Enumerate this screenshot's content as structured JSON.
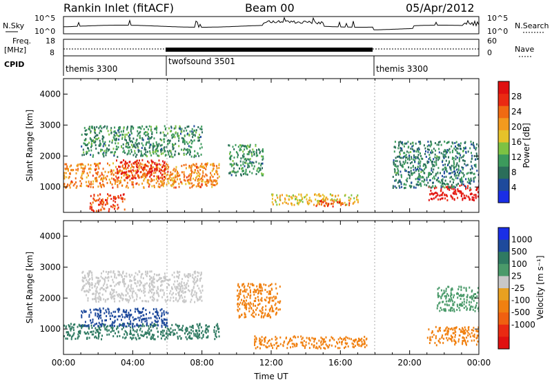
{
  "header": {
    "station": "Rankin Inlet (fitACF)",
    "beam": "Beam 00",
    "date": "05/Apr/2012"
  },
  "panel_labels": {
    "nsky": "N.Sky",
    "freq": "Freq.",
    "mhz": "[MHz]",
    "cpid": "CPID",
    "nsearch": "N.Search",
    "nave": "Nave"
  },
  "colors": {
    "power_scale": [
      "#1a2ee6",
      "#1e4a9c",
      "#2b6e5a",
      "#3c9a5c",
      "#7dc243",
      "#e6c22a",
      "#f29a1e",
      "#f06a12",
      "#ea2a12",
      "#e01010"
    ],
    "velocity_scale": [
      "#1a2ee6",
      "#1e4a9c",
      "#2f7a62",
      "#4a9a6a",
      "#c8c8c8",
      "#e8a020",
      "#f08010",
      "#f06010",
      "#ea2a12",
      "#e01010"
    ]
  },
  "chart_data": [
    {
      "type": "line",
      "panel": "noise",
      "ylabel_left": "N.Sky",
      "ylabel_right": "N.Search",
      "left_ticks": [
        "10^5",
        "10^0"
      ],
      "right_ticks": [
        "10^5",
        "10^0"
      ]
    },
    {
      "type": "line",
      "panel": "frequency",
      "ylabel_left": "Freq. [MHz]",
      "ylabel_right": "Nave",
      "left_ticks": [
        "18",
        "8"
      ],
      "right_ticks": [
        "60",
        "0"
      ]
    },
    {
      "type": "table",
      "panel": "cpid",
      "label": "CPID",
      "segments": [
        {
          "name": "themis 3300",
          "start": "00:00",
          "end": "06:00"
        },
        {
          "name": "twofsound 3501",
          "start": "06:00",
          "end": "18:00"
        },
        {
          "name": "themis 3300",
          "start": "18:00",
          "end": "24:00"
        }
      ]
    },
    {
      "type": "heatmap",
      "panel": "power",
      "ylabel": "Slant Range [km]",
      "xlabel": "Time UT",
      "y_ticks": [
        "1000",
        "2000",
        "3000",
        "4000"
      ],
      "ylim": [
        180,
        4500
      ],
      "x_ticks": [
        "00:00",
        "04:00",
        "08:00",
        "12:00",
        "16:00",
        "20:00",
        "00:00"
      ],
      "colorbar_label": "Power [dB]",
      "colorbar_ticks": [
        "4",
        "8",
        "12",
        "16",
        "20",
        "24",
        "28"
      ],
      "colorbar_range": [
        0,
        32
      ],
      "regions": [
        {
          "t0": 0.0,
          "t1": 9.0,
          "r0": 1000,
          "r1": 1800,
          "value": 22
        },
        {
          "t0": 1.0,
          "t1": 8.0,
          "r0": 2000,
          "r1": 3000,
          "value": 10
        },
        {
          "t0": 3.0,
          "t1": 6.0,
          "r0": 1300,
          "r1": 1900,
          "value": 28
        },
        {
          "t0": 1.5,
          "t1": 3.5,
          "r0": 250,
          "r1": 800,
          "value": 26
        },
        {
          "t0": 9.5,
          "t1": 11.5,
          "r0": 1400,
          "r1": 2400,
          "value": 10
        },
        {
          "t0": 12.0,
          "t1": 17.0,
          "r0": 450,
          "r1": 800,
          "value": 18
        },
        {
          "t0": 14.5,
          "t1": 16.5,
          "r0": 400,
          "r1": 600,
          "value": 26
        },
        {
          "t0": 21.0,
          "t1": 24.0,
          "r0": 600,
          "r1": 1100,
          "value": 30
        },
        {
          "t0": 19.0,
          "t1": 24.0,
          "r0": 1000,
          "r1": 2500,
          "value": 9
        }
      ]
    },
    {
      "type": "heatmap",
      "panel": "velocity",
      "ylabel": "Slant Range [km]",
      "xlabel": "Time UT",
      "y_ticks": [
        "1000",
        "2000",
        "3000",
        "4000"
      ],
      "ylim": [
        180,
        4500
      ],
      "x_ticks": [
        "00:00",
        "04:00",
        "08:00",
        "12:00",
        "16:00",
        "20:00",
        "00:00"
      ],
      "colorbar_label": "Velocity [m s⁻¹]",
      "colorbar_ticks": [
        "1000",
        "500",
        "100",
        "25",
        "-25",
        "-100",
        "-500",
        "-1000"
      ],
      "regions": [
        {
          "t0": 0.0,
          "t1": 9.0,
          "r0": 700,
          "r1": 1200,
          "value": 150
        },
        {
          "t0": 1.0,
          "t1": 6.0,
          "r0": 1100,
          "r1": 1700,
          "value": 600
        },
        {
          "t0": 1.0,
          "t1": 8.0,
          "r0": 1900,
          "r1": 2900,
          "value": 0
        },
        {
          "t0": 10.0,
          "t1": 12.5,
          "r0": 1400,
          "r1": 2500,
          "value": -300
        },
        {
          "t0": 11.0,
          "t1": 17.5,
          "r0": 400,
          "r1": 800,
          "value": -200
        },
        {
          "t0": 21.0,
          "t1": 24.0,
          "r0": 500,
          "r1": 1100,
          "value": -300
        },
        {
          "t0": 21.5,
          "t1": 24.0,
          "r0": 1600,
          "r1": 2400,
          "value": 80
        }
      ]
    }
  ]
}
